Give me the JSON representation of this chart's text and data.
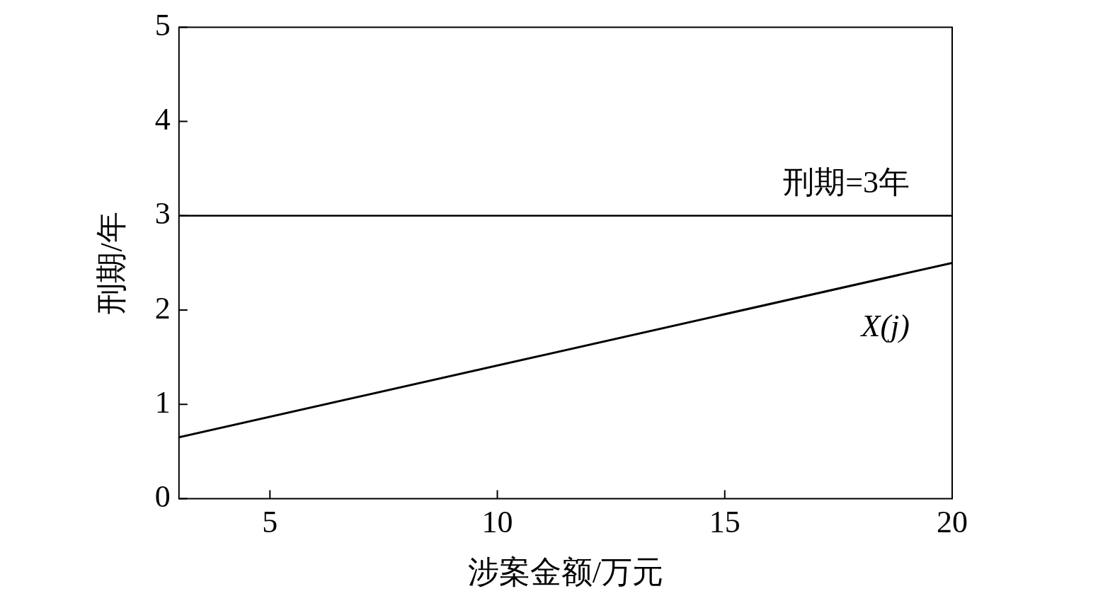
{
  "chart_data": {
    "type": "line",
    "xlabel": "涉案金额/万元",
    "ylabel": "刑期/年",
    "xlim": [
      3,
      20
    ],
    "xticks": [
      5,
      10,
      15,
      20
    ],
    "ylim": [
      0,
      5
    ],
    "yticks": [
      0,
      1,
      2,
      3,
      4,
      5
    ],
    "grid": false,
    "legend": false,
    "marker": "none",
    "line_style": "solid",
    "series": [
      {
        "name": "X(j)",
        "color": "#000000",
        "x": [
          3,
          20
        ],
        "values": [
          0.65,
          2.5
        ]
      }
    ],
    "ref_lines": [
      {
        "axis": "y",
        "value": 3,
        "label": "刑期=3年",
        "color": "#000000"
      }
    ]
  }
}
